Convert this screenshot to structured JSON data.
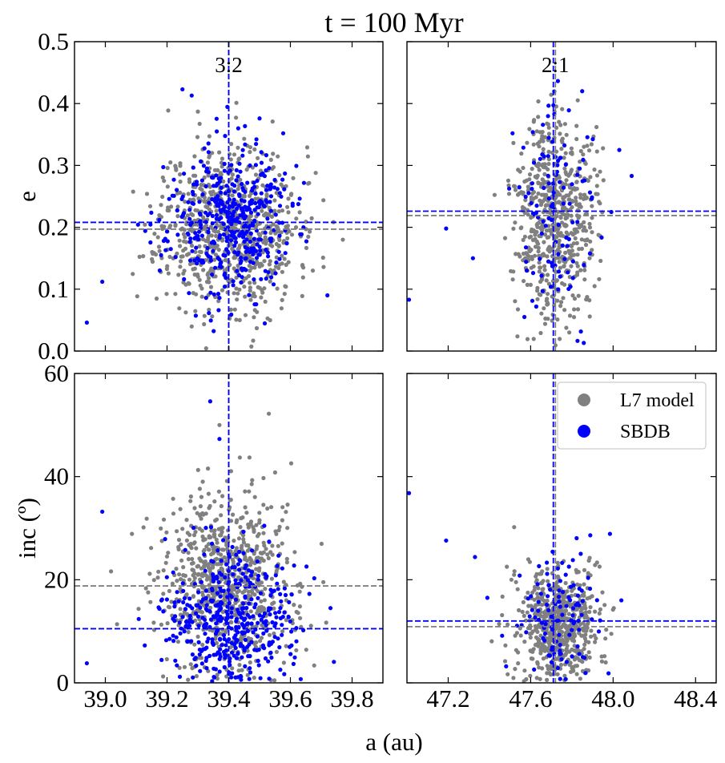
{
  "title": "t = 100 Myr",
  "xlabel": "a (au)",
  "legend": {
    "location": "top-right of lower-right panel",
    "entries": [
      {
        "label": "L7 model",
        "color": "#808080"
      },
      {
        "label": "SBDB",
        "color": "#0000ff"
      }
    ]
  },
  "chart_data": [
    {
      "type": "scatter",
      "panel": "top-left",
      "resonance_label": "3:2",
      "xlim": [
        38.9,
        39.9
      ],
      "ylim": [
        0.0,
        0.5
      ],
      "ylabel": "e",
      "xticks": [
        39.0,
        39.2,
        39.4,
        39.6,
        39.8
      ],
      "xtick_labels": [
        "39.0",
        "39.2",
        "39.4",
        "39.6",
        "39.8"
      ],
      "yticks": [
        0.0,
        0.1,
        0.2,
        0.3,
        0.4,
        0.5
      ],
      "ytick_labels": [
        "0.0",
        "0.1",
        "0.2",
        "0.3",
        "0.4",
        "0.5"
      ],
      "show_xtick_labels": false,
      "show_ytick_labels": true,
      "series": [
        {
          "name": "L7 model",
          "color": "#808080",
          "n": 800,
          "mean": [
            39.4,
            0.2
          ],
          "std": [
            0.11,
            0.065
          ],
          "seed": 11,
          "median_x": 39.4,
          "median_y": 0.197
        },
        {
          "name": "SBDB",
          "color": "#0000ff",
          "n": 420,
          "mean": [
            39.4,
            0.21
          ],
          "std": [
            0.1,
            0.06
          ],
          "seed": 23,
          "median_x": 39.4,
          "median_y": 0.208
        }
      ],
      "outliers": [
        {
          "series": "SBDB",
          "x": 38.94,
          "y": 0.046
        },
        {
          "series": "SBDB",
          "x": 38.99,
          "y": 0.112
        },
        {
          "series": "SBDB",
          "x": 39.72,
          "y": 0.09
        },
        {
          "series": "SBDB",
          "x": 39.25,
          "y": 0.423
        },
        {
          "series": "SBDB",
          "x": 39.28,
          "y": 0.413
        },
        {
          "series": "SBDB",
          "x": 39.5,
          "y": 0.376
        },
        {
          "series": "L7 model",
          "x": 39.77,
          "y": 0.18
        },
        {
          "series": "L7 model",
          "x": 39.3,
          "y": 0.387
        }
      ]
    },
    {
      "type": "scatter",
      "panel": "top-right",
      "resonance_label": "2:1",
      "xlim": [
        47.0,
        48.5
      ],
      "ylim": [
        0.0,
        0.5
      ],
      "ylabel": "",
      "xticks": [
        47.2,
        47.6,
        48.0,
        48.4
      ],
      "xtick_labels": [
        "47.2",
        "47.6",
        "48.0",
        "48.4"
      ],
      "yticks": [
        0.0,
        0.1,
        0.2,
        0.3,
        0.4,
        0.5
      ],
      "ytick_labels": [
        "0.0",
        "0.1",
        "0.2",
        "0.3",
        "0.4",
        "0.5"
      ],
      "show_xtick_labels": false,
      "show_ytick_labels": false,
      "series": [
        {
          "name": "L7 model",
          "color": "#808080",
          "n": 600,
          "mean": [
            47.72,
            0.22
          ],
          "std": [
            0.095,
            0.08
          ],
          "seed": 37,
          "median_x": 47.72,
          "median_y": 0.219
        },
        {
          "name": "SBDB",
          "color": "#0000ff",
          "n": 110,
          "mean": [
            47.73,
            0.23
          ],
          "std": [
            0.1,
            0.085
          ],
          "seed": 41,
          "median_x": 47.71,
          "median_y": 0.226
        }
      ],
      "outliers": [
        {
          "series": "SBDB",
          "x": 47.01,
          "y": 0.083
        },
        {
          "series": "SBDB",
          "x": 47.19,
          "y": 0.198
        },
        {
          "series": "SBDB",
          "x": 47.32,
          "y": 0.15
        },
        {
          "series": "SBDB",
          "x": 48.09,
          "y": 0.283
        },
        {
          "series": "SBDB",
          "x": 47.85,
          "y": 0.42
        },
        {
          "series": "SBDB",
          "x": 48.03,
          "y": 0.325
        }
      ]
    },
    {
      "type": "scatter",
      "panel": "bottom-left",
      "resonance_label": "",
      "xlim": [
        38.9,
        39.9
      ],
      "ylim": [
        0,
        60
      ],
      "ylabel": "inc (º)",
      "xticks": [
        39.0,
        39.2,
        39.4,
        39.6,
        39.8
      ],
      "xtick_labels": [
        "39.0",
        "39.2",
        "39.4",
        "39.6",
        "39.8"
      ],
      "yticks": [
        0,
        20,
        40,
        60
      ],
      "ytick_labels": [
        "0",
        "20",
        "40",
        "60"
      ],
      "show_xtick_labels": true,
      "show_ytick_labels": true,
      "series": [
        {
          "name": "L7 model",
          "color": "#808080",
          "n": 800,
          "mean": [
            39.4,
            19.0
          ],
          "std": [
            0.11,
            9.0
          ],
          "seed": 53,
          "median_x": 39.4,
          "median_y": 18.8
        },
        {
          "name": "SBDB",
          "color": "#0000ff",
          "n": 420,
          "mean": [
            39.4,
            11.5
          ],
          "std": [
            0.1,
            7.0
          ],
          "seed": 67,
          "median_x": 39.4,
          "median_y": 10.5
        }
      ],
      "outliers": [
        {
          "series": "SBDB",
          "x": 38.99,
          "y": 33.2
        },
        {
          "series": "SBDB",
          "x": 38.94,
          "y": 3.8
        },
        {
          "series": "SBDB",
          "x": 39.34,
          "y": 54.6
        },
        {
          "series": "SBDB",
          "x": 39.37,
          "y": 47.3
        },
        {
          "series": "L7 model",
          "x": 39.53,
          "y": 52.2
        },
        {
          "series": "L7 model",
          "x": 39.37,
          "y": 50.0
        },
        {
          "series": "SBDB",
          "x": 39.73,
          "y": 14.5
        }
      ]
    },
    {
      "type": "scatter",
      "panel": "bottom-right",
      "resonance_label": "",
      "xlim": [
        47.0,
        48.5
      ],
      "ylim": [
        0,
        60
      ],
      "ylabel": "",
      "xticks": [
        47.2,
        47.6,
        48.0,
        48.4
      ],
      "xtick_labels": [
        "47.2",
        "47.6",
        "48.0",
        "48.4"
      ],
      "yticks": [
        0,
        20,
        40,
        60
      ],
      "ytick_labels": [
        "0",
        "20",
        "40",
        "60"
      ],
      "show_xtick_labels": true,
      "show_ytick_labels": false,
      "series": [
        {
          "name": "L7 model",
          "color": "#808080",
          "n": 600,
          "mean": [
            47.73,
            11.0
          ],
          "std": [
            0.1,
            5.5
          ],
          "seed": 71,
          "median_x": 47.72,
          "median_y": 10.9
        },
        {
          "name": "SBDB",
          "color": "#0000ff",
          "n": 110,
          "mean": [
            47.74,
            12.5
          ],
          "std": [
            0.1,
            6.5
          ],
          "seed": 83,
          "median_x": 47.71,
          "median_y": 12.0
        }
      ],
      "outliers": [
        {
          "series": "SBDB",
          "x": 47.01,
          "y": 36.8
        },
        {
          "series": "SBDB",
          "x": 47.19,
          "y": 27.6
        },
        {
          "series": "SBDB",
          "x": 47.33,
          "y": 24.4
        },
        {
          "series": "SBDB",
          "x": 47.39,
          "y": 16.5
        },
        {
          "series": "L7 model",
          "x": 47.52,
          "y": 30.2
        },
        {
          "series": "SBDB",
          "x": 48.04,
          "y": 16.0
        }
      ]
    }
  ]
}
